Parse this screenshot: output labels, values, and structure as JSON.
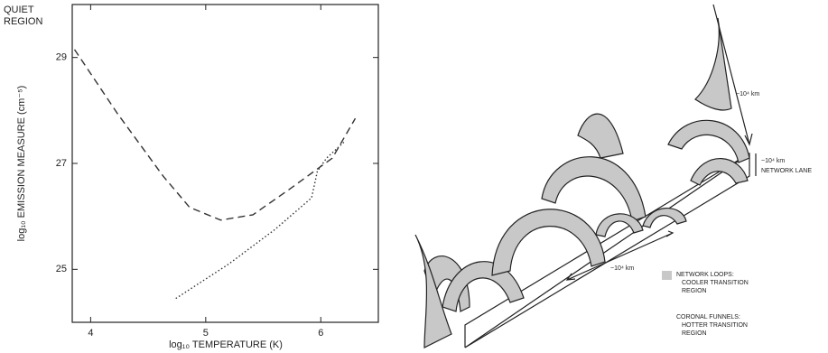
{
  "chart_data": {
    "type": "line",
    "title": [
      "QUIET",
      "REGION"
    ],
    "xlabel": "log₁₀ TEMPERATURE (K)",
    "ylabel": "log₁₀ EMISSION MEASURE (cm⁻⁵)",
    "xlim": [
      3.84,
      6.5
    ],
    "xticks": [
      4,
      5,
      6
    ],
    "ylim": [
      24,
      30
    ],
    "yticks": [
      25,
      27,
      29
    ],
    "series": [
      {
        "color": "#333333",
        "line_style": "dashed",
        "x": [
          3.86,
          4.23,
          4.63,
          4.86,
          5.13,
          5.41,
          5.72,
          6.1,
          6.3
        ],
        "values": [
          29.15,
          27.95,
          26.76,
          26.17,
          25.93,
          26.03,
          26.5,
          27.1,
          27.85
        ]
      },
      {
        "color": "#333333",
        "line_style": "dotted",
        "x": [
          4.74,
          5.2,
          5.6,
          5.92,
          5.97,
          6.05,
          6.2
        ],
        "values": [
          24.45,
          25.1,
          25.75,
          26.35,
          26.85,
          27.1,
          27.4
        ]
      }
    ]
  },
  "diagram": {
    "scale_labels": [
      "~10⁴ km",
      "~10⁴ km",
      "~10⁴ km"
    ],
    "lane_label": "NETWORK LANE",
    "legend": [
      {
        "lines": [
          "NETWORK LOOPS:",
          "COOLER TRANSITION",
          "REGION"
        ]
      },
      {
        "lines": [
          "CORONAL FUNNELS:",
          "HOTTER TRANSITION",
          "REGION"
        ]
      }
    ]
  }
}
